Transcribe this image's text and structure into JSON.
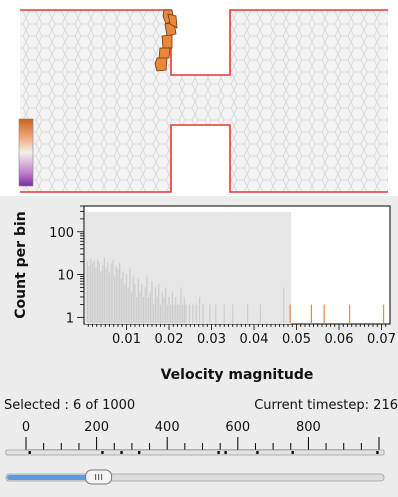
{
  "simulation": {
    "wall_color": "#e53935",
    "colorbar_colors": [
      "#c8641e",
      "#f0a070",
      "#f5f0e8",
      "#c080d0",
      "#7a2ca0"
    ],
    "selected_color": "#e8883a"
  },
  "chart_data": {
    "type": "bar",
    "xlabel": "Velocity magnitude",
    "ylabel": "Count per bin",
    "xlim": [
      0,
      0.072
    ],
    "y_scale": "log",
    "ylim": [
      0.7,
      400
    ],
    "x_ticks": [
      0.01,
      0.02,
      0.03,
      0.04,
      0.05,
      0.06,
      0.07
    ],
    "x_tick_labels": [
      "0.01",
      "0.02",
      "0.03",
      "0.04",
      "0.05",
      "0.06",
      "0.07"
    ],
    "y_ticks": [
      1,
      10,
      100
    ],
    "y_tick_labels": [
      "1",
      "10",
      "100"
    ],
    "selection_range": [
      0,
      0.0485
    ],
    "series": [
      {
        "color": "#cccccc",
        "x": [
          0.0008,
          0.0012,
          0.0016,
          0.002,
          0.0024,
          0.0028,
          0.0032,
          0.0036,
          0.004,
          0.0044,
          0.0048,
          0.0052,
          0.0056,
          0.006,
          0.0064,
          0.0068,
          0.0072,
          0.0076,
          0.008,
          0.0084,
          0.0088,
          0.0092,
          0.0096,
          0.01,
          0.0104,
          0.0108,
          0.0112,
          0.0116,
          0.012,
          0.0124,
          0.0128,
          0.0132,
          0.0136,
          0.014,
          0.0144,
          0.0148,
          0.0152,
          0.0156,
          0.016,
          0.0164,
          0.0168,
          0.0172,
          0.0176,
          0.018,
          0.0184,
          0.0188,
          0.0192,
          0.0196,
          0.02,
          0.0204,
          0.0208,
          0.0212,
          0.0216,
          0.022,
          0.0224,
          0.0228,
          0.0232,
          0.0236,
          0.024,
          0.0248,
          0.0256,
          0.0264,
          0.0272,
          0.028,
          0.0296,
          0.031,
          0.033,
          0.035,
          0.0385,
          0.0415,
          0.047
        ],
        "values": [
          20,
          16,
          23,
          18,
          21,
          15,
          22,
          19,
          12,
          17,
          25,
          14,
          20,
          11,
          18,
          22,
          9,
          15,
          13,
          19,
          8,
          12,
          6,
          10,
          5,
          14,
          4,
          9,
          6,
          3,
          8,
          4,
          6,
          3,
          5,
          9,
          3,
          4,
          7,
          2,
          5,
          3,
          6,
          2,
          4,
          3,
          5,
          2,
          3,
          2,
          4,
          2,
          3,
          2,
          2,
          5,
          2,
          3,
          2,
          2,
          2,
          2,
          3,
          2,
          2,
          2,
          2,
          2,
          2,
          2,
          5
        ]
      },
      {
        "color": "#e8883a",
        "x": [
          0.0485,
          0.0535,
          0.0565,
          0.0625,
          0.0705
        ],
        "values": [
          2,
          2,
          2,
          2,
          2
        ]
      }
    ]
  },
  "status": {
    "selected_text": "Selected : 6 of 1000",
    "timestep_label": "Current timestep:",
    "timestep_value": "216"
  },
  "timeline": {
    "ticks": [
      0,
      200,
      400,
      600,
      800
    ],
    "tick_labels": [
      "0",
      "200",
      "400",
      "600",
      "800"
    ],
    "max": 1000,
    "current": 216,
    "markers": [
      10,
      216,
      270,
      320,
      545,
      565,
      655,
      755,
      995
    ],
    "slider_fraction": 0.245
  }
}
